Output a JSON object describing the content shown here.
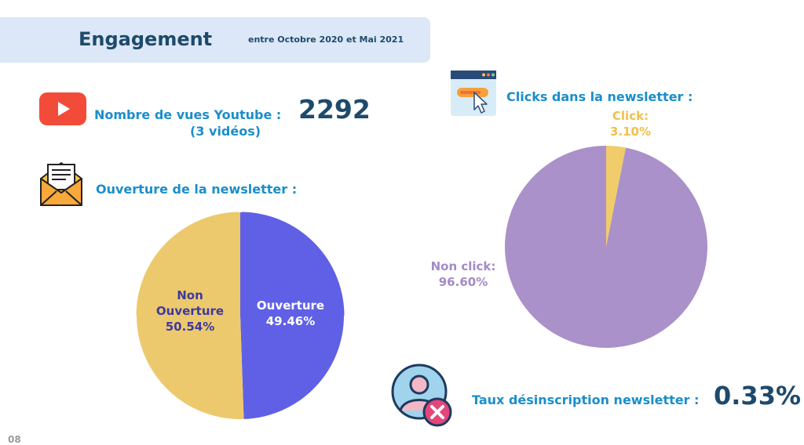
{
  "header": {
    "title": "Engagement",
    "subtitle": "entre Octobre 2020 et Mai 2021"
  },
  "youtube": {
    "label": "Nombre de vues Youtube  :",
    "sub": "(3 vidéos)",
    "value": "2292",
    "icon": "youtube-play-icon"
  },
  "newsletter_open": {
    "label": "Ouverture de la newsletter :",
    "icon": "envelope-letter-icon"
  },
  "newsletter_clicks": {
    "title": "Clicks dans la newsletter :",
    "icon": "browser-click-icon"
  },
  "unsubscribe": {
    "label": "Taux désinscription newsletter :",
    "value": "0.33%",
    "icon": "user-remove-icon"
  },
  "page": {
    "number": "08"
  },
  "chart_data": [
    {
      "type": "pie",
      "title": "",
      "slices": [
        {
          "label": "Ouverture",
          "value": 49.46,
          "display": "49.46%",
          "color": "#6060e6",
          "text_color": "#ffffff"
        },
        {
          "label": "Non Ouverture",
          "value": 50.54,
          "display": "50.54%",
          "color": "#edc96e",
          "text_color": "#3d3aa0"
        }
      ]
    },
    {
      "type": "pie",
      "title": "",
      "slices": [
        {
          "label": "Click:",
          "value": 3.1,
          "display": "3.10%",
          "color": "#f0cc6b",
          "text_color": "#f0c04e"
        },
        {
          "label": "Non click:",
          "value": 96.6,
          "display": "96.60%",
          "color": "#aa91c9",
          "text_color": "#a38ac6"
        }
      ]
    }
  ]
}
